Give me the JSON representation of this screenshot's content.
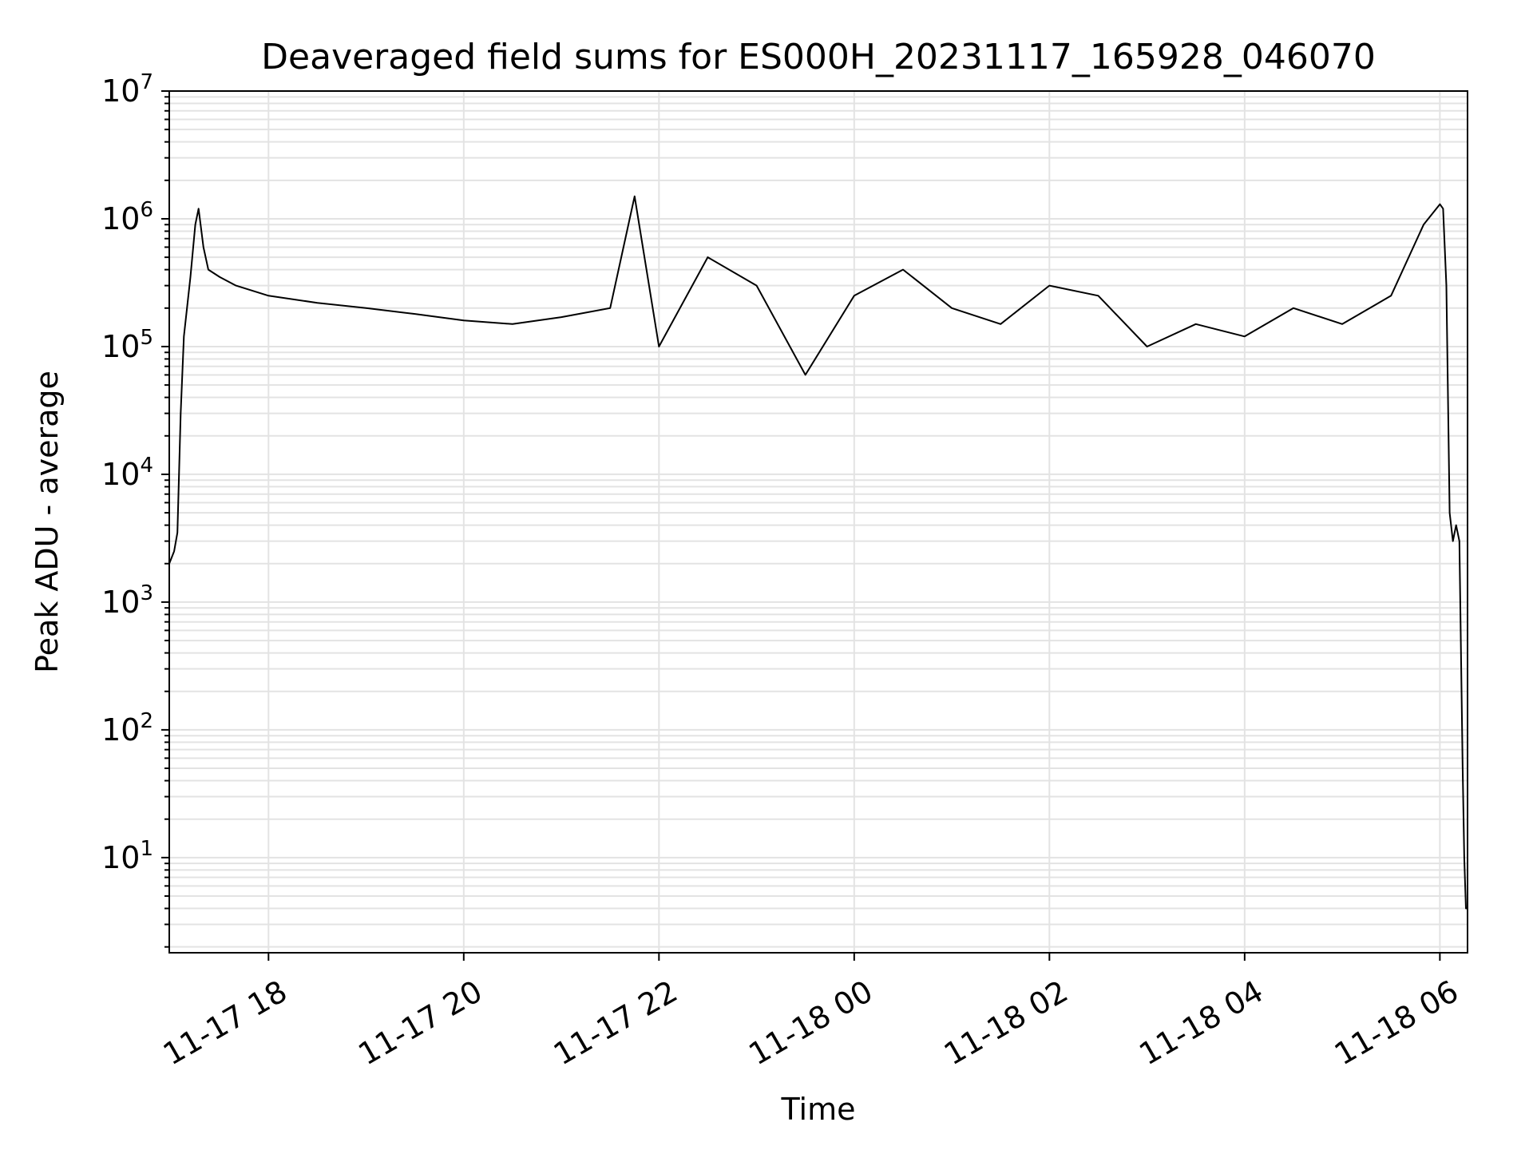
{
  "chart_data": {
    "type": "line",
    "title": "Deaveraged field sums for ES000H_20231117_165928_046070",
    "xlabel": "Time",
    "ylabel": "Peak ADU - average",
    "yscale": "log",
    "ylim": [
      1.8,
      10000000
    ],
    "xlim": [
      "2023-11-17 16:59",
      "2023-11-18 06:17"
    ],
    "grid": true,
    "line_color": "#000000",
    "grid_color": "#e3e3e3",
    "x_ticks": [
      {
        "t": "2023-11-17 18:00",
        "label": "11-17 18"
      },
      {
        "t": "2023-11-17 20:00",
        "label": "11-17 20"
      },
      {
        "t": "2023-11-17 22:00",
        "label": "11-17 22"
      },
      {
        "t": "2023-11-18 00:00",
        "label": "11-18 00"
      },
      {
        "t": "2023-11-18 02:00",
        "label": "11-18 02"
      },
      {
        "t": "2023-11-18 04:00",
        "label": "11-18 04"
      },
      {
        "t": "2023-11-18 06:00",
        "label": "11-18 06"
      }
    ],
    "y_ticks": [
      {
        "value": 10,
        "base": "10",
        "exp": "1"
      },
      {
        "value": 100,
        "base": "10",
        "exp": "2"
      },
      {
        "value": 1000,
        "base": "10",
        "exp": "3"
      },
      {
        "value": 10000,
        "base": "10",
        "exp": "4"
      },
      {
        "value": 100000,
        "base": "10",
        "exp": "5"
      },
      {
        "value": 1000000,
        "base": "10",
        "exp": "6"
      },
      {
        "value": 10000000,
        "base": "10",
        "exp": "7"
      }
    ],
    "series": [
      {
        "x": [
          "2023-11-17 16:59",
          "2023-11-17 17:02",
          "2023-11-17 17:04",
          "2023-11-17 17:06",
          "2023-11-17 17:08",
          "2023-11-17 17:12",
          "2023-11-17 17:15",
          "2023-11-17 17:17",
          "2023-11-17 17:20",
          "2023-11-17 17:23",
          "2023-11-17 17:30",
          "2023-11-17 17:40",
          "2023-11-17 18:00",
          "2023-11-17 18:30",
          "2023-11-17 19:00",
          "2023-11-17 19:30",
          "2023-11-17 20:00",
          "2023-11-17 20:30",
          "2023-11-17 21:00",
          "2023-11-17 21:30",
          "2023-11-17 21:45",
          "2023-11-17 22:00",
          "2023-11-17 22:30",
          "2023-11-17 23:00",
          "2023-11-17 23:30",
          "2023-11-18 00:00",
          "2023-11-18 00:30",
          "2023-11-18 01:00",
          "2023-11-18 01:30",
          "2023-11-18 02:00",
          "2023-11-18 02:30",
          "2023-11-18 03:00",
          "2023-11-18 03:30",
          "2023-11-18 04:00",
          "2023-11-18 04:30",
          "2023-11-18 05:00",
          "2023-11-18 05:30",
          "2023-11-18 05:50",
          "2023-11-18 06:00",
          "2023-11-18 06:02",
          "2023-11-18 06:04",
          "2023-11-18 06:06",
          "2023-11-18 06:08",
          "2023-11-18 06:10",
          "2023-11-18 06:12",
          "2023-11-18 06:14",
          "2023-11-18 06:15",
          "2023-11-18 06:16",
          "2023-11-18 06:17"
        ],
        "y": [
          2000,
          2500,
          3500,
          30000,
          120000,
          350000,
          900000,
          1200000,
          600000,
          400000,
          350000,
          300000,
          250000,
          220000,
          200000,
          180000,
          160000,
          150000,
          170000,
          200000,
          1500000,
          100000,
          500000,
          300000,
          60000,
          250000,
          400000,
          200000,
          150000,
          300000,
          250000,
          100000,
          150000,
          120000,
          200000,
          150000,
          250000,
          900000,
          1300000,
          1200000,
          300000,
          5000,
          3000,
          4000,
          3000,
          50,
          10,
          4,
          4
        ]
      }
    ]
  }
}
